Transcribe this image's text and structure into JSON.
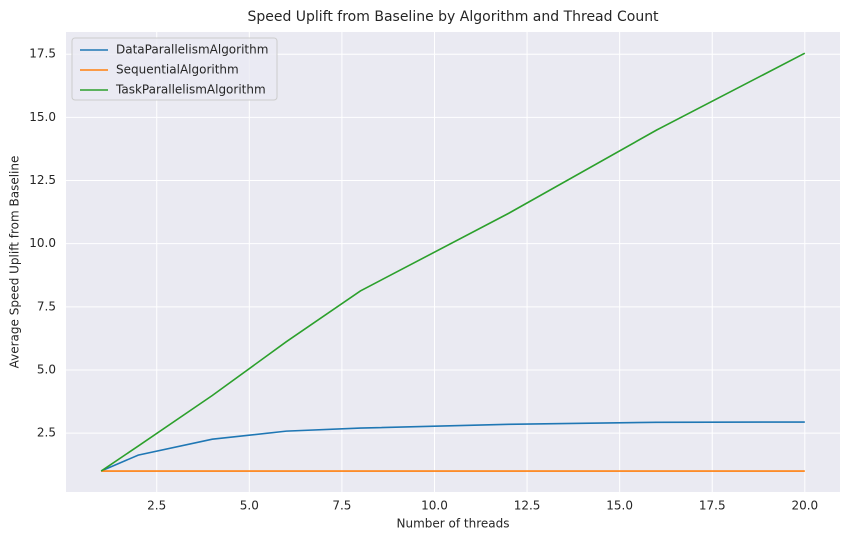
{
  "chart_data": {
    "type": "line",
    "title": "Speed Uplift from Baseline by Algorithm and Thread Count",
    "x_label": "Number of threads",
    "y_label": "Average Speed Uplift from Baseline",
    "x": [
      1,
      2,
      4,
      6,
      8,
      12,
      16,
      20
    ],
    "series": [
      {
        "name": "DataParallelismAlgorithm",
        "color": "#1f77b4",
        "values": [
          1,
          1.63,
          2.26,
          2.58,
          2.7,
          2.85,
          2.93,
          2.94
        ]
      },
      {
        "name": "SequentialAlgorithm",
        "color": "#ff7f0e",
        "values": [
          1,
          1,
          1,
          1,
          1,
          1,
          1,
          1
        ]
      },
      {
        "name": "TaskParallelismAlgorithm",
        "color": "#2ca02c",
        "values": [
          1,
          1.99,
          3.99,
          6.12,
          8.13,
          11.2,
          14.5,
          17.54
        ]
      }
    ],
    "xlim": [
      0.05,
      20.95
    ],
    "ylim": [
      0.17,
      18.38
    ],
    "xticks": [
      2.5,
      {
        "value": 5,
        "label": "5.0"
      },
      7.5,
      {
        "value": 10,
        "label": "10.0"
      },
      12.5,
      {
        "value": 15,
        "label": "15.0"
      },
      17.5,
      {
        "value": 20,
        "label": "20.0"
      }
    ],
    "yticks": [
      2.5,
      {
        "value": 5,
        "label": "5.0"
      },
      7.5,
      {
        "value": 10,
        "label": "10.0"
      },
      12.5,
      {
        "value": 15,
        "label": "15.0"
      },
      17.5
    ],
    "grid": true,
    "legend": "upper-left"
  }
}
